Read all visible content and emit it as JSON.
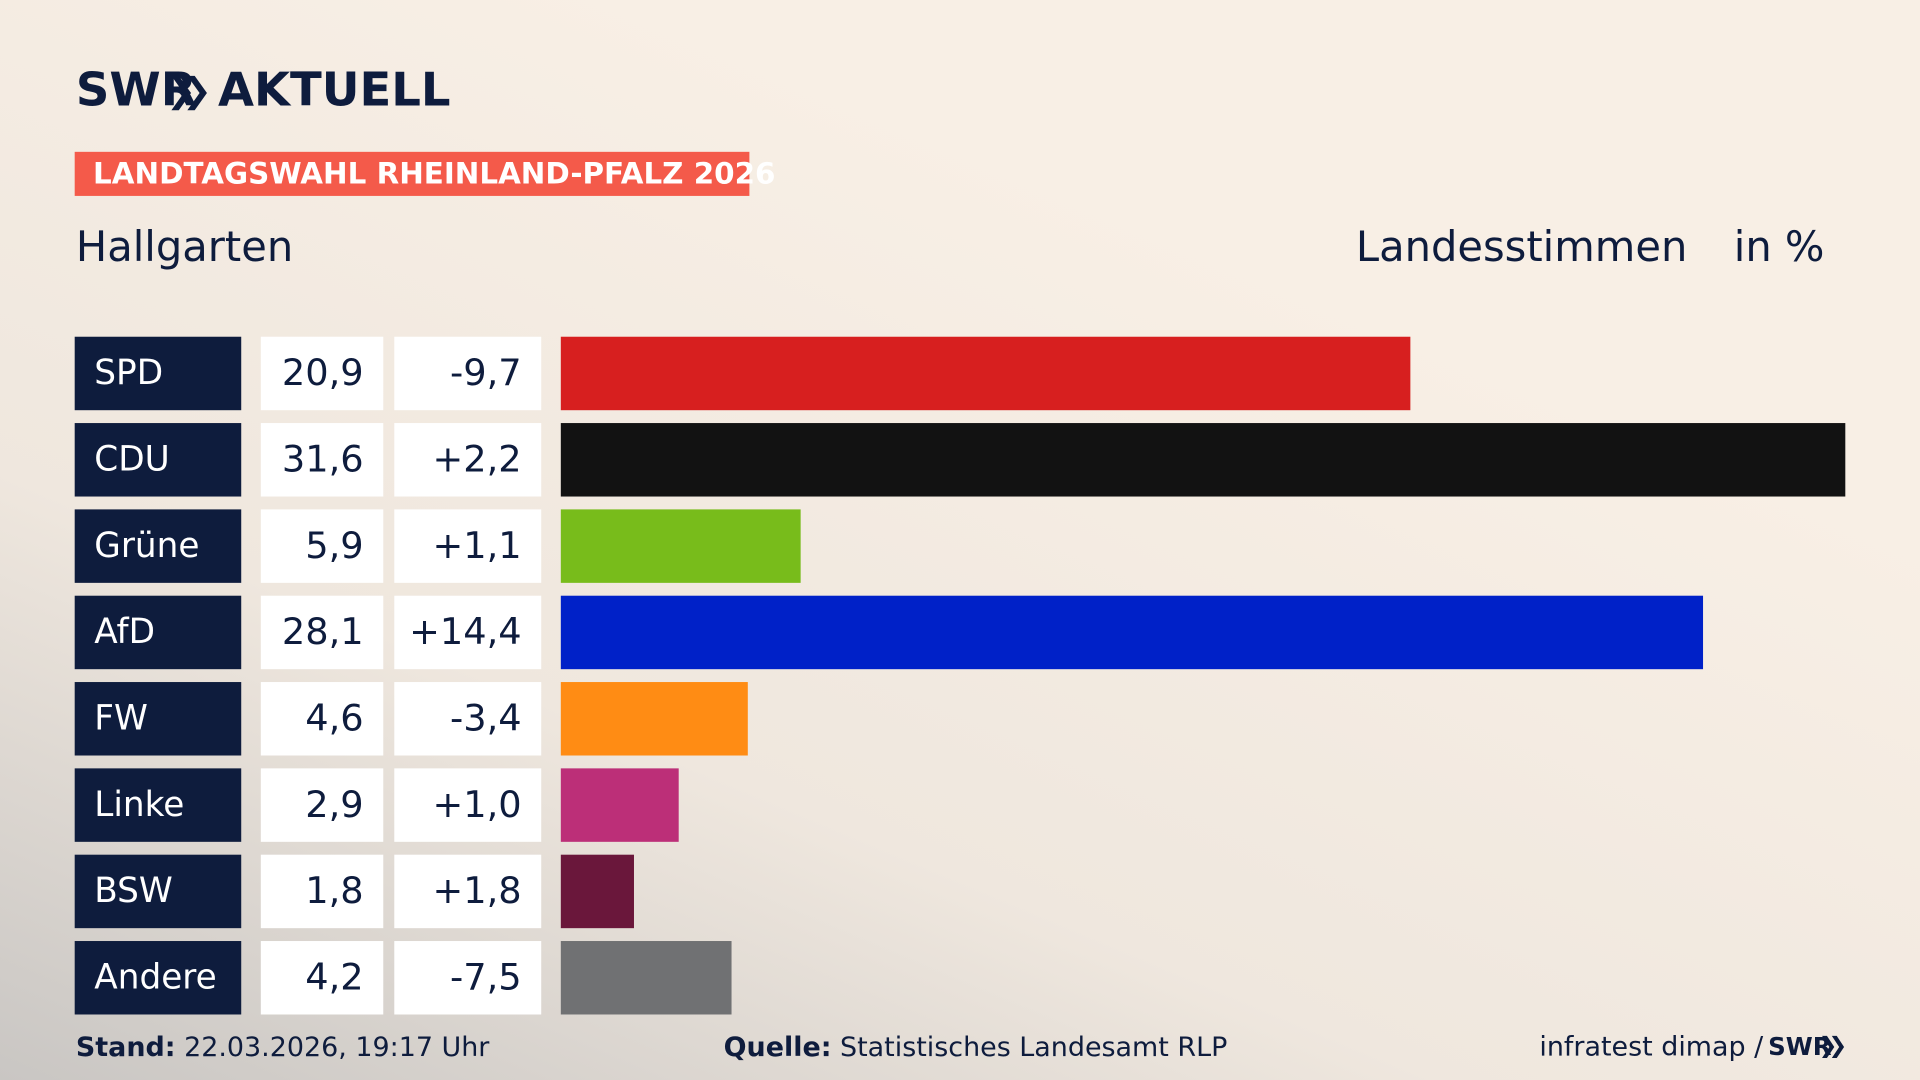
{
  "brand": {
    "name": "SWR",
    "section": "AKTUELL"
  },
  "chart_data": {
    "type": "bar",
    "title": "LANDTAGSWAHL RHEINLAND-PFALZ 2026",
    "subtitle": "Hallgarten",
    "measure": "Landesstimmen",
    "unit": "in %",
    "categories": [
      "SPD",
      "CDU",
      "Grüne",
      "AfD",
      "FW",
      "Linke",
      "BSW",
      "Andere"
    ],
    "values": [
      20.9,
      31.6,
      5.9,
      28.1,
      4.6,
      2.9,
      1.8,
      4.2
    ],
    "value_labels": [
      "20,9",
      "31,6",
      "5,9",
      "28,1",
      "4,6",
      "2,9",
      "1,8",
      "4,2"
    ],
    "changes": [
      -9.7,
      2.2,
      1.1,
      14.4,
      -3.4,
      1.0,
      1.8,
      -7.5
    ],
    "change_labels": [
      "-9,7",
      "+2,2",
      "+1,1",
      "+14,4",
      "-3,4",
      "+1,0",
      "+1,8",
      "-7,5"
    ],
    "colors": [
      "#d71f1f",
      "#121212",
      "#78bc1b",
      "#0021c8",
      "#ff8c14",
      "#bc2f78",
      "#6a173b",
      "#707173"
    ]
  },
  "footer": {
    "stand_label": "Stand:",
    "stand": "22.03.2026, 19:17 Uhr",
    "source_label": "Quelle:",
    "source": "Statistisches Landesamt RLP",
    "credit": "infratest dimap /",
    "credit_brand": "SWR"
  }
}
